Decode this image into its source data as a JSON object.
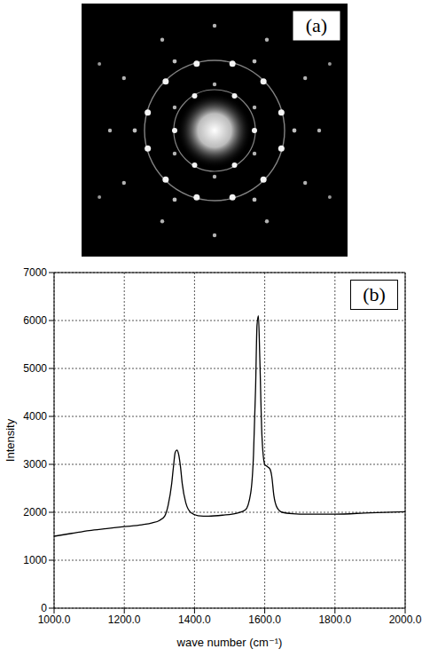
{
  "chart_data": [
    {
      "type": "image",
      "annotations": [
        "(a)"
      ]
    },
    {
      "type": "line",
      "annotations": [
        "(b)"
      ],
      "x_label": "wave number (cm⁻¹)",
      "y_label": "Intensity",
      "x": [
        1000,
        1050,
        1100,
        1150,
        1200,
        1250,
        1280,
        1300,
        1315,
        1325,
        1335,
        1340,
        1345,
        1350,
        1355,
        1360,
        1365,
        1375,
        1390,
        1410,
        1440,
        1480,
        1520,
        1545,
        1560,
        1568,
        1574,
        1578,
        1582,
        1586,
        1592,
        1600,
        1608,
        1615,
        1620,
        1626,
        1635,
        1650,
        1680,
        1720,
        1800,
        1900,
        2000
      ],
      "values": [
        1500,
        1560,
        1620,
        1660,
        1700,
        1740,
        1780,
        1830,
        1920,
        2150,
        2600,
        2950,
        3250,
        3300,
        3200,
        2950,
        2600,
        2200,
        1990,
        1930,
        1920,
        1940,
        1980,
        2050,
        2400,
        3200,
        4600,
        5900,
        6100,
        5200,
        3600,
        3000,
        2950,
        2900,
        2750,
        2350,
        2100,
        2000,
        1970,
        1960,
        1960,
        1990,
        2010
      ],
      "color": "#000000",
      "xlim": [
        1000,
        2000
      ],
      "xticks": [
        {
          "value": 1000,
          "label": "1000.0"
        },
        {
          "value": 1200,
          "label": "1200.0"
        },
        {
          "value": 1400,
          "label": "1400.0"
        },
        {
          "value": 1600,
          "label": "1600.0"
        },
        {
          "value": 1800,
          "label": "1800.0"
        },
        {
          "value": 2000,
          "label": "2000.0"
        }
      ],
      "ylim": [
        0,
        7000
      ],
      "yticks": [
        0,
        1000,
        2000,
        3000,
        4000,
        5000,
        6000,
        7000
      ],
      "grid": true
    }
  ]
}
